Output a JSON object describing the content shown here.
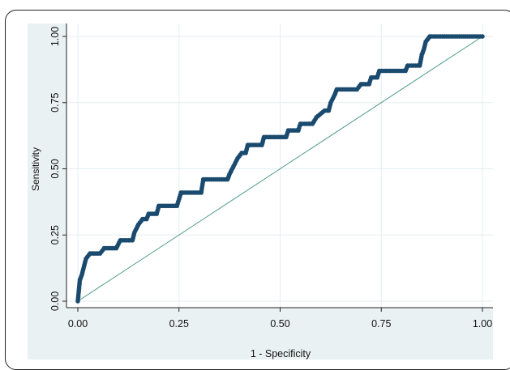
{
  "chart_data": {
    "type": "scatter",
    "title": "",
    "xlabel": "1 - Specificity",
    "ylabel": "Sensitivity",
    "xlim": [
      0,
      1
    ],
    "ylim": [
      0,
      1
    ],
    "x_ticks": [
      "0.00",
      "0.25",
      "0.50",
      "0.75",
      "1.00"
    ],
    "y_ticks": [
      "0.00",
      "0.25",
      "0.50",
      "0.75",
      "1.00"
    ],
    "grid": true,
    "colors": {
      "background": "#eaf1f3",
      "plot_area": "#ffffff",
      "grid": "#e6edf0",
      "points": "#1a4a6e",
      "reference_line": "#4e9a86"
    },
    "roc_curve": {
      "x": [
        0.0,
        0.005,
        0.01,
        0.015,
        0.02,
        0.03,
        0.055,
        0.065,
        0.095,
        0.105,
        0.135,
        0.14,
        0.15,
        0.16,
        0.17,
        0.175,
        0.195,
        0.2,
        0.245,
        0.25,
        0.255,
        0.305,
        0.31,
        0.37,
        0.375,
        0.385,
        0.395,
        0.405,
        0.415,
        0.42,
        0.455,
        0.46,
        0.515,
        0.52,
        0.545,
        0.55,
        0.58,
        0.59,
        0.61,
        0.62,
        0.625,
        0.635,
        0.64,
        0.69,
        0.7,
        0.72,
        0.725,
        0.74,
        0.745,
        0.81,
        0.815,
        0.845,
        0.85,
        0.855,
        0.86,
        0.865,
        0.87,
        1.0
      ],
      "y": [
        0.0,
        0.08,
        0.1,
        0.13,
        0.16,
        0.18,
        0.18,
        0.2,
        0.2,
        0.23,
        0.23,
        0.26,
        0.29,
        0.31,
        0.31,
        0.33,
        0.33,
        0.36,
        0.36,
        0.385,
        0.41,
        0.41,
        0.46,
        0.46,
        0.48,
        0.51,
        0.54,
        0.56,
        0.56,
        0.59,
        0.59,
        0.62,
        0.62,
        0.645,
        0.645,
        0.67,
        0.67,
        0.695,
        0.72,
        0.72,
        0.75,
        0.78,
        0.8,
        0.8,
        0.82,
        0.82,
        0.845,
        0.845,
        0.87,
        0.87,
        0.89,
        0.89,
        0.93,
        0.95,
        0.98,
        0.99,
        1.0,
        1.0
      ]
    },
    "reference_line": {
      "x": [
        0,
        1
      ],
      "y": [
        0,
        1
      ]
    }
  }
}
